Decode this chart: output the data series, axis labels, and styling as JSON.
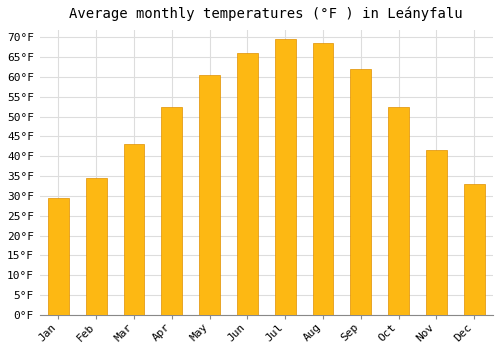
{
  "title": "Average monthly temperatures (°F ) in Leányfalu",
  "months": [
    "Jan",
    "Feb",
    "Mar",
    "Apr",
    "May",
    "Jun",
    "Jul",
    "Aug",
    "Sep",
    "Oct",
    "Nov",
    "Dec"
  ],
  "values": [
    29.5,
    34.5,
    43.0,
    52.5,
    60.5,
    66.0,
    69.5,
    68.5,
    62.0,
    52.5,
    41.5,
    33.0
  ],
  "bar_color_top": "#FDB813",
  "bar_color_bottom": "#F5A800",
  "bar_edge_color": "#E09000",
  "background_color": "#FFFFFF",
  "plot_bg_color": "#FFFFFF",
  "grid_color": "#DDDDDD",
  "ylim": [
    0,
    72
  ],
  "yticks": [
    0,
    5,
    10,
    15,
    20,
    25,
    30,
    35,
    40,
    45,
    50,
    55,
    60,
    65,
    70
  ],
  "title_fontsize": 10,
  "tick_fontsize": 8,
  "bar_width": 0.55
}
